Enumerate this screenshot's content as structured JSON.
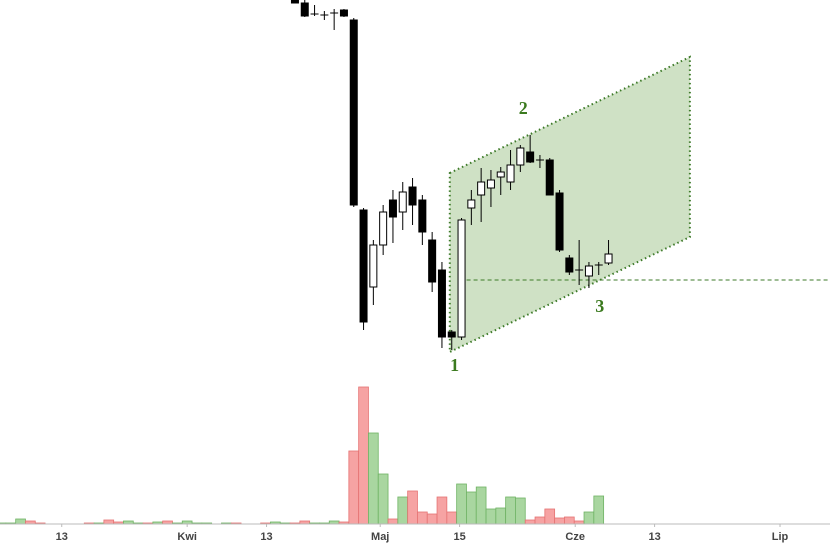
{
  "chart_data": {
    "type": "candlestick",
    "up_color": "#ffffff",
    "down_color": "#000000",
    "xlim": [
      -0.1,
      84.6
    ],
    "ylim": [
      0,
      100
    ],
    "xticks": [
      {
        "value": 6.2,
        "label": "13"
      },
      {
        "value": 19,
        "label": "Kwi"
      },
      {
        "value": 27.1,
        "label": "13"
      },
      {
        "value": 38.7,
        "label": "Maj"
      },
      {
        "value": 46.8,
        "label": "15"
      },
      {
        "value": 58.6,
        "label": "Cze"
      },
      {
        "value": 66.7,
        "label": "13"
      },
      {
        "value": 79.5,
        "label": "Lip"
      }
    ],
    "x": [
      30,
      31,
      32,
      33,
      34,
      35,
      36,
      37,
      38,
      39,
      40,
      41,
      42,
      43,
      44,
      45,
      46,
      47,
      48,
      49,
      50,
      51,
      52,
      53,
      54,
      55,
      56,
      57,
      58,
      59,
      60,
      61,
      62
    ],
    "open": [
      100,
      99.25,
      96.5,
      96.25,
      96.75,
      97.5,
      95,
      47.5,
      28.25,
      38.75,
      50,
      47,
      53.25,
      50,
      40,
      32.5,
      17,
      15.75,
      48,
      51.25,
      53,
      55.75,
      54.5,
      58.75,
      62,
      60,
      60,
      51.75,
      35.5,
      32.5,
      31,
      33.75,
      34.25
    ],
    "high": [
      100,
      100,
      98.75,
      97.25,
      97.75,
      97.75,
      95.5,
      48,
      40,
      48.75,
      52.5,
      54.5,
      55.5,
      51.25,
      42,
      34.5,
      17.5,
      45.5,
      52.5,
      58,
      57.5,
      58.25,
      62.5,
      63.75,
      66.25,
      61.25,
      60.5,
      52.5,
      36.25,
      40,
      34.5,
      34.5,
      40
    ],
    "low": [
      99.25,
      95.75,
      96,
      95,
      92.5,
      95.75,
      48.25,
      17.5,
      23.75,
      36.25,
      39.25,
      42.5,
      43.75,
      38.75,
      27,
      13,
      12.5,
      15,
      43.75,
      44.5,
      48.25,
      51.25,
      52.5,
      57,
      59.25,
      58,
      51.25,
      37,
      31.25,
      28.75,
      28,
      31.25,
      33.75
    ],
    "close": [
      99.25,
      96,
      96.5,
      96.25,
      96.75,
      96,
      48.75,
      19.5,
      38.75,
      47,
      45.75,
      52,
      48.75,
      42,
      29.5,
      15.75,
      15.75,
      45,
      50,
      54.5,
      55,
      57,
      58.75,
      63,
      59.5,
      60,
      51.25,
      37.5,
      32,
      32.5,
      33.5,
      33.75,
      36.5
    ],
    "channel": {
      "x": [
        45.8,
        70.3,
        70.3,
        45.8
      ],
      "y": [
        56.75,
        85.75,
        40.75,
        12
      ]
    },
    "support": {
      "y": 30,
      "x_start": 46.8
    },
    "annotations": [
      {
        "text": "1",
        "x": 46.3,
        "y": 8.25
      },
      {
        "text": "2",
        "x": 53.3,
        "y": 72.5
      },
      {
        "text": "3",
        "x": 61.1,
        "y": 23
      }
    ],
    "volume": {
      "ylim": [
        0,
        140
      ],
      "up_color": "#a9d6a0",
      "down_color": "#f6a3a3",
      "x": [
        0,
        1,
        2,
        3,
        4,
        5,
        6,
        7,
        8,
        9,
        10,
        11,
        12,
        13,
        14,
        15,
        16,
        17,
        18,
        19,
        20,
        21,
        22,
        23,
        24,
        25,
        26,
        27,
        28,
        29,
        30,
        31,
        32,
        33,
        34,
        35,
        36,
        37,
        38,
        39,
        40,
        41,
        42,
        43,
        44,
        45,
        46,
        47,
        48,
        49,
        50,
        51,
        52,
        53,
        54,
        55,
        56,
        57,
        58,
        59,
        60,
        61
      ],
      "values": [
        1,
        1,
        5,
        3,
        1,
        null,
        null,
        null,
        null,
        1,
        1,
        4,
        2,
        3,
        1,
        1,
        2,
        3,
        1,
        3,
        1,
        1,
        null,
        1,
        1,
        null,
        null,
        1,
        2,
        1,
        1,
        3,
        1,
        1,
        3,
        2,
        73,
        137,
        91,
        50,
        5,
        27,
        33,
        12,
        10,
        27,
        12,
        40,
        32,
        37,
        15,
        16,
        27,
        26,
        4,
        7,
        15,
        6,
        7,
        3,
        12,
        28
      ],
      "direction": [
        "up",
        "up",
        "up",
        "down",
        "down",
        null,
        null,
        null,
        null,
        "down",
        "up",
        "down",
        "down",
        "up",
        "up",
        "down",
        "up",
        "down",
        "up",
        "up",
        "up",
        "up",
        null,
        "up",
        "down",
        null,
        null,
        "down",
        "up",
        "up",
        "down",
        "down",
        "up",
        "up",
        "up",
        "down",
        "down",
        "down",
        "up",
        "up",
        "down",
        "up",
        "down",
        "down",
        "down",
        "down",
        "down",
        "up",
        "up",
        "up",
        "up",
        "up",
        "up",
        "up",
        "down",
        "down",
        "down",
        "down",
        "down",
        "down",
        "up",
        "up"
      ]
    }
  }
}
